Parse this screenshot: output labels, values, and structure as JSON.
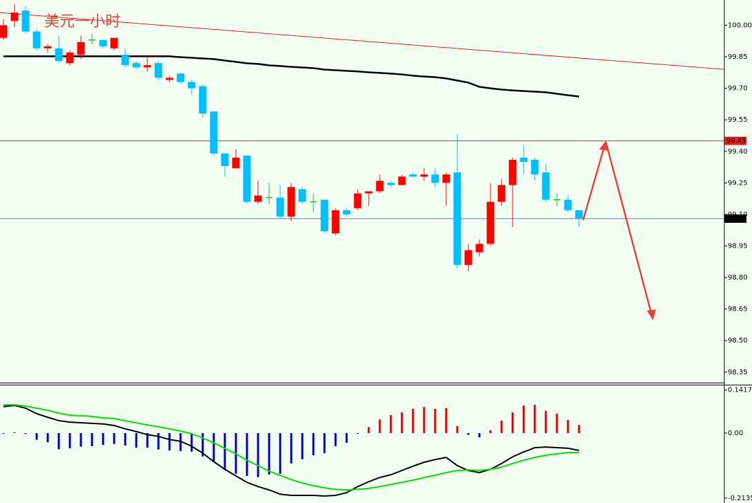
{
  "chart_data": [
    {
      "type": "candlestick",
      "title": "美元一小时",
      "open": [
        99.94,
        100.02,
        100.07,
        99.97,
        99.89,
        99.89,
        99.82,
        99.86,
        99.93,
        99.93,
        99.89,
        99.86,
        99.82,
        99.8,
        99.82,
        99.74,
        99.77,
        99.73,
        99.71,
        99.59,
        99.39,
        99.32,
        99.38,
        99.16,
        99.18,
        99.18,
        99.09,
        99.22,
        99.16,
        99.17,
        99.01,
        99.12,
        99.13,
        99.2,
        99.21,
        99.25,
        99.24,
        99.29,
        99.28,
        99.29,
        99.25,
        99.3,
        98.86,
        98.92,
        98.96,
        99.16,
        99.24,
        99.37,
        99.36,
        99.3,
        99.17,
        99.17,
        99.12
      ],
      "high": [
        100.03,
        100.1,
        100.09,
        99.98,
        99.91,
        99.95,
        99.88,
        99.95,
        99.96,
        99.93,
        99.94,
        99.89,
        99.83,
        99.85,
        99.83,
        99.76,
        99.77,
        99.74,
        99.72,
        99.59,
        99.39,
        99.41,
        99.38,
        99.26,
        99.25,
        99.24,
        99.25,
        99.23,
        99.2,
        99.17,
        99.13,
        99.13,
        99.22,
        99.21,
        99.29,
        99.26,
        99.29,
        99.3,
        99.32,
        99.32,
        99.3,
        99.48,
        98.96,
        98.98,
        99.25,
        99.27,
        99.37,
        99.43,
        99.37,
        99.34,
        99.2,
        99.19,
        99.12
      ],
      "low": [
        99.93,
        99.99,
        99.96,
        99.88,
        99.87,
        99.82,
        99.81,
        99.84,
        99.91,
        99.89,
        99.88,
        99.8,
        99.79,
        99.78,
        99.74,
        99.73,
        99.72,
        99.67,
        99.56,
        99.38,
        99.28,
        99.32,
        99.15,
        99.15,
        99.15,
        99.08,
        99.07,
        99.15,
        99.11,
        99.01,
        99.0,
        99.09,
        99.12,
        99.14,
        99.2,
        99.23,
        99.24,
        99.28,
        99.26,
        99.23,
        99.14,
        98.84,
        98.83,
        98.9,
        98.95,
        99.14,
        99.04,
        99.29,
        99.26,
        99.16,
        99.14,
        99.11,
        99.04
      ],
      "close": [
        100.0,
        100.06,
        99.97,
        99.89,
        99.9,
        99.83,
        99.87,
        99.92,
        99.93,
        99.9,
        99.94,
        99.81,
        99.8,
        99.81,
        99.75,
        99.75,
        99.73,
        99.7,
        99.58,
        99.39,
        99.33,
        99.37,
        99.16,
        99.19,
        99.18,
        99.09,
        99.23,
        99.16,
        99.16,
        99.02,
        99.12,
        99.1,
        99.2,
        99.21,
        99.26,
        99.24,
        99.28,
        99.28,
        99.29,
        99.25,
        99.29,
        98.86,
        98.93,
        98.96,
        99.16,
        99.24,
        99.36,
        99.35,
        99.29,
        99.17,
        99.17,
        99.12,
        99.08
      ],
      "up_color": "#ff0000",
      "down_color": "#00bfff",
      "doji_color": "#22c022",
      "moving_average": {
        "color": "#000000",
        "values": [
          99.852,
          99.852,
          99.852,
          99.852,
          99.852,
          99.852,
          99.852,
          99.852,
          99.852,
          99.852,
          99.852,
          99.852,
          99.852,
          99.852,
          99.852,
          99.852,
          99.848,
          99.845,
          99.842,
          99.839,
          99.832,
          99.826,
          99.819,
          99.816,
          99.809,
          99.806,
          99.802,
          99.799,
          99.796,
          99.789,
          99.786,
          99.783,
          99.78,
          99.776,
          99.773,
          99.77,
          99.766,
          99.76,
          99.756,
          99.753,
          99.747,
          99.737,
          99.727,
          99.707,
          99.7,
          99.694,
          99.69,
          99.687,
          99.684,
          99.681,
          99.674,
          99.667,
          99.661
        ]
      },
      "trendline": {
        "color": "#e02020",
        "values": [
          100.06,
          99.79
        ]
      },
      "levels": [
        {
          "value": 99.45,
          "color": "#e02020",
          "label_color": "#ffffff"
        },
        {
          "value": 99.08,
          "color": "#5a7fa0",
          "label_color": "#ffffff"
        }
      ],
      "ylim": [
        98.3,
        100.12
      ],
      "yticks": [
        {
          "value": 100,
          "label": "100.00"
        },
        99.85,
        {
          "value": 99.7,
          "label": "99.70"
        },
        99.55,
        {
          "value": 99.4,
          "label": "99.40"
        },
        99.25,
        {
          "value": 99.1,
          "label": "99.10"
        },
        98.95,
        {
          "value": 98.8,
          "label": "98.80"
        },
        98.65,
        {
          "value": 98.5,
          "label": "98.50"
        },
        98.35
      ]
    },
    {
      "type": "macd",
      "histogram": {
        "up_color": "#e00000",
        "down_color": "#0000cc",
        "values": [
          -0.002,
          0.003,
          -0.003,
          -0.022,
          -0.03,
          -0.053,
          -0.05,
          -0.045,
          -0.043,
          -0.039,
          -0.036,
          -0.041,
          -0.048,
          -0.048,
          -0.054,
          -0.057,
          -0.059,
          -0.061,
          -0.077,
          -0.095,
          -0.122,
          -0.134,
          -0.141,
          -0.145,
          -0.136,
          -0.134,
          -0.1,
          -0.086,
          -0.073,
          -0.066,
          -0.043,
          -0.032,
          -0.002,
          0.02,
          0.045,
          0.059,
          0.068,
          0.08,
          0.086,
          0.08,
          0.082,
          0.023,
          -0.006,
          -0.014,
          0.009,
          0.041,
          0.068,
          0.091,
          0.093,
          0.073,
          0.064,
          0.043,
          0.027
        ]
      },
      "series": [
        {
          "color": "#000000",
          "values": [
            0.087,
            0.091,
            0.082,
            0.064,
            0.052,
            0.041,
            0.036,
            0.034,
            0.032,
            0.03,
            0.025,
            0.014,
            0.005,
            -0.005,
            -0.011,
            -0.021,
            -0.027,
            -0.043,
            -0.066,
            -0.094,
            -0.119,
            -0.141,
            -0.162,
            -0.176,
            -0.187,
            -0.201,
            -0.205,
            -0.205,
            -0.205,
            -0.207,
            -0.205,
            -0.196,
            -0.176,
            -0.16,
            -0.146,
            -0.137,
            -0.123,
            -0.109,
            -0.096,
            -0.087,
            -0.08,
            -0.107,
            -0.123,
            -0.13,
            -0.119,
            -0.1,
            -0.078,
            -0.062,
            -0.048,
            -0.046,
            -0.048,
            -0.05,
            -0.057
          ]
        },
        {
          "color": "#00e000",
          "values": [
            0.093,
            0.093,
            0.089,
            0.082,
            0.075,
            0.066,
            0.059,
            0.057,
            0.055,
            0.05,
            0.048,
            0.041,
            0.034,
            0.027,
            0.021,
            0.014,
            0.007,
            -0.002,
            -0.016,
            -0.032,
            -0.05,
            -0.068,
            -0.089,
            -0.107,
            -0.125,
            -0.139,
            -0.153,
            -0.164,
            -0.173,
            -0.18,
            -0.185,
            -0.187,
            -0.185,
            -0.182,
            -0.176,
            -0.169,
            -0.162,
            -0.155,
            -0.146,
            -0.139,
            -0.13,
            -0.123,
            -0.121,
            -0.123,
            -0.119,
            -0.112,
            -0.1,
            -0.089,
            -0.08,
            -0.073,
            -0.068,
            -0.064,
            -0.064
          ]
        }
      ],
      "ylim": [
        -0.23,
        0.157
      ],
      "yticks": [
        0.1417,
        {
          "value": 0,
          "label": "0.00"
        },
        -0.2135
      ]
    }
  ]
}
